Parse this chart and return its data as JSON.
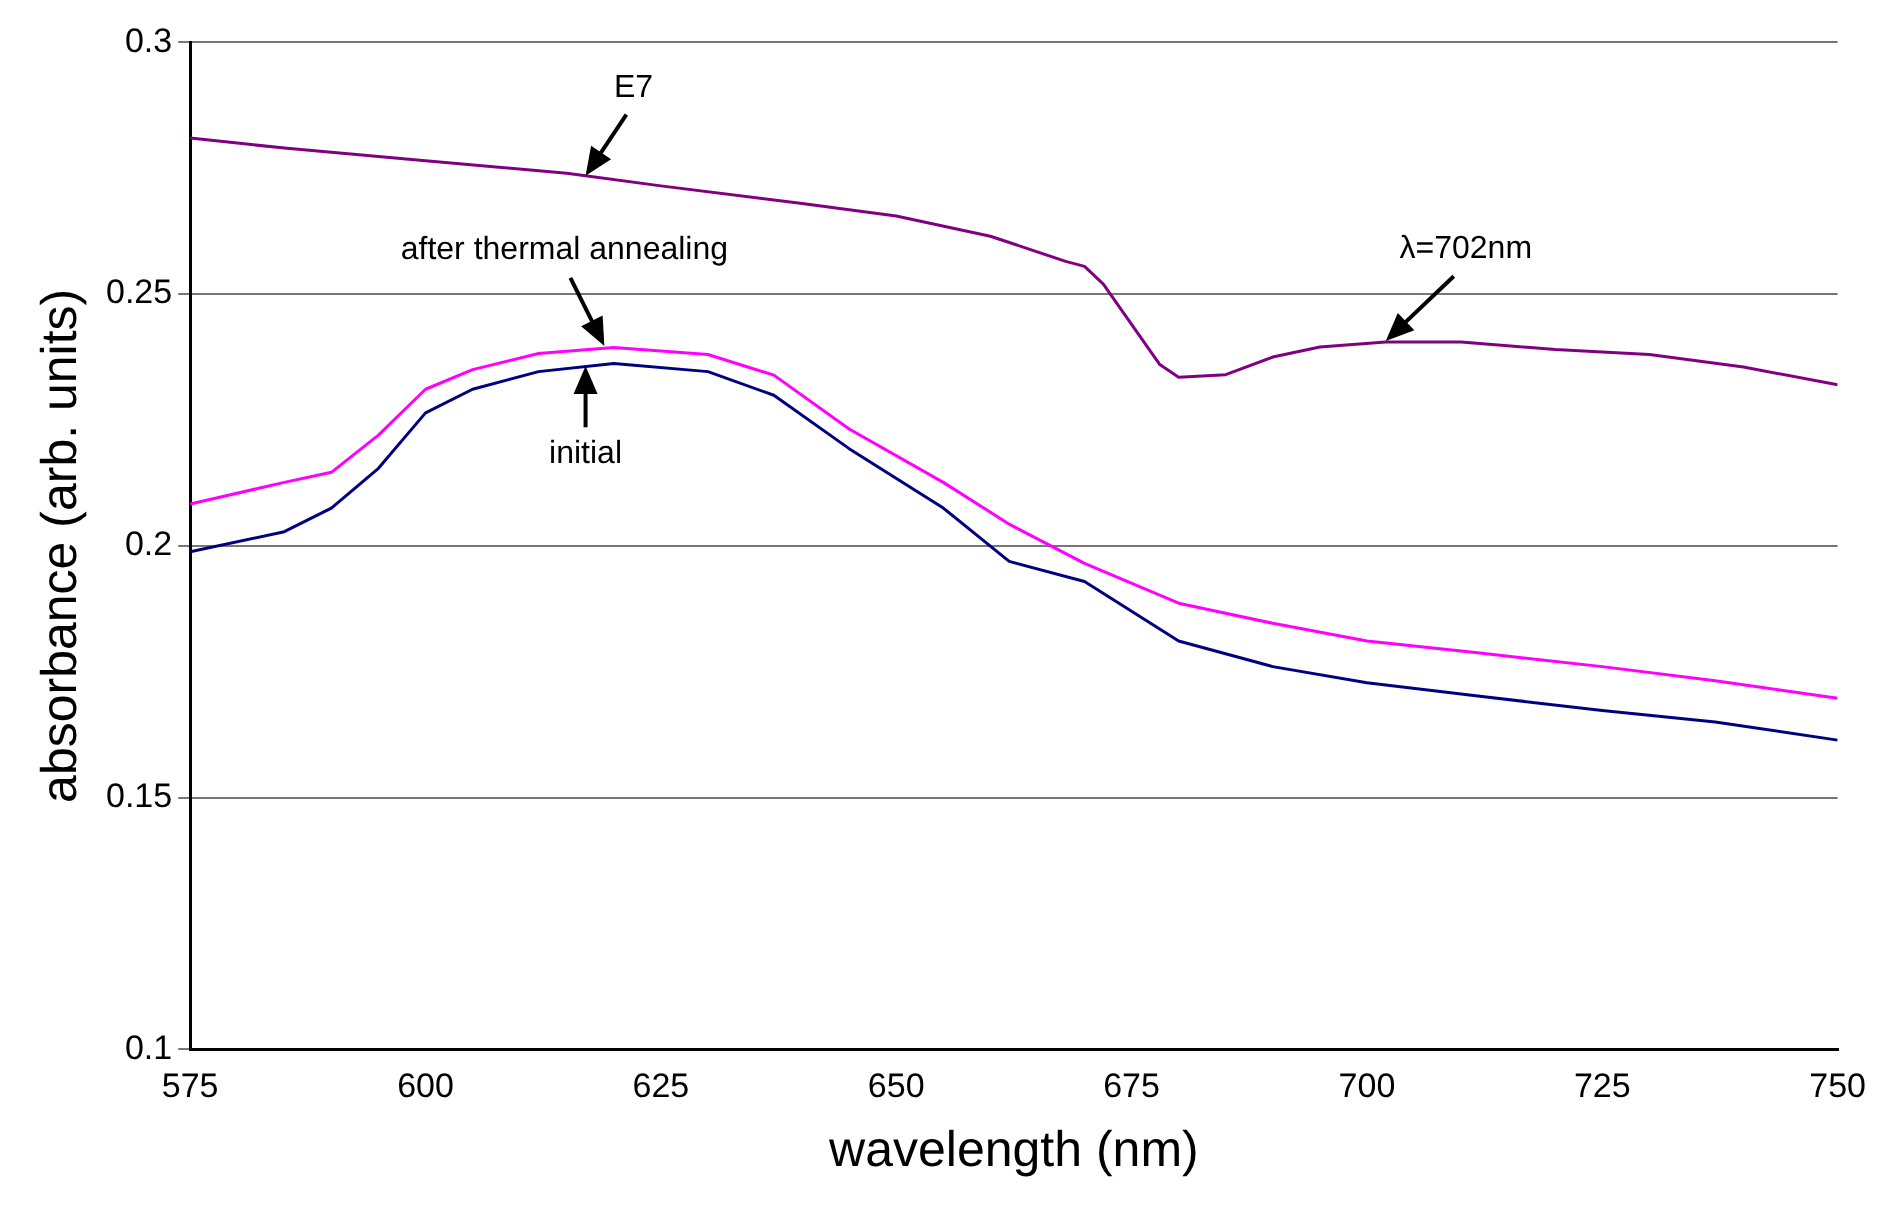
{
  "chart_data": {
    "type": "line",
    "xlabel": "wavelength (nm)",
    "ylabel": "absorbance (arb. units)",
    "xlim": [
      575,
      750
    ],
    "xticks": [
      575,
      600,
      625,
      650,
      675,
      700,
      725,
      750
    ],
    "ylim": [
      0.1,
      0.3
    ],
    "yticks": [
      0.1,
      0.15,
      0.2,
      0.25,
      0.3
    ],
    "grid": "y",
    "legend": false,
    "marker": "none",
    "line_style": "solid",
    "series": [
      {
        "color": "#800080",
        "x": [
          575,
          585,
          600,
          615,
          625,
          640,
          650,
          660,
          668,
          670,
          672,
          675,
          678,
          680,
          685,
          690,
          695,
          702,
          710,
          720,
          730,
          740,
          750
        ],
        "values": [
          0.281,
          0.279,
          0.2765,
          0.274,
          0.2715,
          0.268,
          0.2655,
          0.2615,
          0.2565,
          0.2555,
          0.252,
          0.244,
          0.236,
          0.2335,
          0.234,
          0.2375,
          0.2395,
          0.2405,
          0.2405,
          0.239,
          0.238,
          0.2355,
          0.232
        ]
      },
      {
        "color": "#ff00ff",
        "x": [
          575,
          585,
          590,
          595,
          600,
          605,
          612,
          620,
          630,
          637,
          645,
          655,
          662,
          670,
          680,
          690,
          700,
          712,
          725,
          737,
          750
        ],
        "values": [
          0.2083,
          0.2126,
          0.2146,
          0.222,
          0.2311,
          0.235,
          0.2382,
          0.2394,
          0.238,
          0.2339,
          0.2232,
          0.2126,
          0.2043,
          0.1965,
          0.1886,
          0.1846,
          0.1811,
          0.1787,
          0.176,
          0.1732,
          0.1697
        ]
      },
      {
        "color": "#000080",
        "x": [
          575,
          585,
          590,
          595,
          600,
          605,
          612,
          620,
          630,
          637,
          645,
          655,
          662,
          670,
          680,
          690,
          700,
          712,
          725,
          737,
          750
        ],
        "values": [
          0.1988,
          0.2028,
          0.2075,
          0.2154,
          0.2264,
          0.2311,
          0.2346,
          0.2362,
          0.2346,
          0.2299,
          0.2193,
          0.2075,
          0.1969,
          0.1929,
          0.1811,
          0.176,
          0.1728,
          0.1701,
          0.1673,
          0.165,
          0.1614
        ]
      }
    ],
    "annotations": [
      {
        "text": "E7",
        "x": 617,
        "y": 0.2735
      },
      {
        "text": "after thermal annealing",
        "x": 619,
        "y": 0.2397
      },
      {
        "text": "initial",
        "x": 617,
        "y": 0.2357
      },
      {
        "text": "λ=702nm",
        "x": 702,
        "y": 0.2407
      }
    ]
  }
}
